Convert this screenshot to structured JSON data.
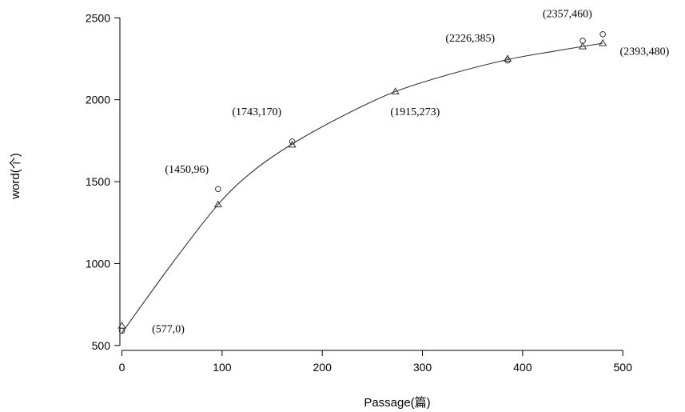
{
  "chart_data": {
    "type": "scatter",
    "xlabel": "Passage(篇)",
    "ylabel": "word(个)",
    "xlim": [
      -2,
      515
    ],
    "ylim": [
      470,
      2560
    ],
    "x_ticks": [
      0,
      100,
      200,
      300,
      400,
      500
    ],
    "y_ticks": [
      500,
      1000,
      1500,
      2000,
      2500
    ],
    "grid": false,
    "series": [
      {
        "marker": "circle",
        "points": [
          {
            "x": 0,
            "y": 590
          },
          {
            "x": 96,
            "y": 1455
          },
          {
            "x": 170,
            "y": 1745
          },
          {
            "x": 385,
            "y": 2240
          },
          {
            "x": 460,
            "y": 2360
          },
          {
            "x": 480,
            "y": 2400
          }
        ]
      },
      {
        "marker": "triangle",
        "points": [
          {
            "x": 0,
            "y": 620
          },
          {
            "x": 96,
            "y": 1360
          },
          {
            "x": 170,
            "y": 1725
          },
          {
            "x": 273,
            "y": 2050
          },
          {
            "x": 385,
            "y": 2250
          },
          {
            "x": 460,
            "y": 2325
          },
          {
            "x": 480,
            "y": 2345
          }
        ]
      }
    ],
    "fit_curve": [
      {
        "x": 0,
        "y": 577
      },
      {
        "x": 50,
        "y": 1000
      },
      {
        "x": 96,
        "y": 1360
      },
      {
        "x": 130,
        "y": 1560
      },
      {
        "x": 170,
        "y": 1730
      },
      {
        "x": 220,
        "y": 1900
      },
      {
        "x": 273,
        "y": 2050
      },
      {
        "x": 330,
        "y": 2160
      },
      {
        "x": 385,
        "y": 2245
      },
      {
        "x": 430,
        "y": 2295
      },
      {
        "x": 480,
        "y": 2345
      }
    ],
    "annotations": [
      {
        "text": "(577,0)",
        "x": 30,
        "y": 580
      },
      {
        "text": "(1450,96)",
        "x": 43,
        "y": 1555
      },
      {
        "text": "(1743,170)",
        "x": 110,
        "y": 1905
      },
      {
        "text": "(1915,273)",
        "x": 268,
        "y": 1905
      },
      {
        "text": "(2226,385)",
        "x": 323,
        "y": 2355
      },
      {
        "text": "(2357,460)",
        "x": 420,
        "y": 2505
      },
      {
        "text": "(2393,480)",
        "x": 497,
        "y": 2275
      }
    ]
  }
}
